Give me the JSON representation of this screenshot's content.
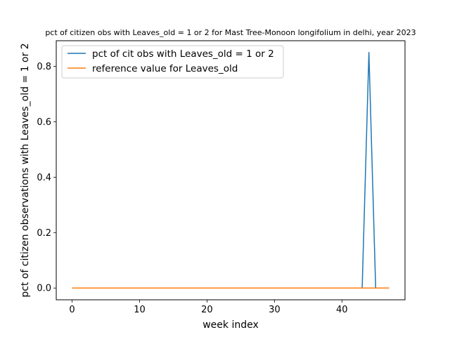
{
  "chart_data": {
    "type": "line",
    "title": "pct of citizen obs with Leaves_old = 1 or 2 for Mast Tree-Monoon longifolium in delhi, year 2023",
    "xlabel": "week index",
    "ylabel": "pct of citizen observations with Leaves_old = 1 or 2",
    "xlim": [
      -2.35,
      49.35
    ],
    "ylim": [
      -0.0425,
      0.8925
    ],
    "xticks": [
      0,
      10,
      20,
      30,
      40
    ],
    "yticks": [
      0.0,
      0.2,
      0.4,
      0.6,
      0.8
    ],
    "xtick_labels": [
      "0",
      "10",
      "20",
      "30",
      "40"
    ],
    "ytick_labels": [
      "0.0",
      "0.2",
      "0.4",
      "0.6",
      "0.8"
    ],
    "grid": false,
    "legend_position": "top-left",
    "series": [
      {
        "name": "pct of cit obs with Leaves_old = 1 or 2",
        "color": "#1f77b4",
        "x": [
          0,
          1,
          2,
          3,
          4,
          5,
          6,
          7,
          8,
          9,
          10,
          11,
          12,
          13,
          14,
          15,
          16,
          17,
          18,
          19,
          20,
          21,
          22,
          23,
          24,
          25,
          26,
          27,
          28,
          29,
          30,
          31,
          32,
          33,
          34,
          35,
          36,
          37,
          38,
          39,
          40,
          41,
          42,
          43,
          44,
          45,
          46,
          47
        ],
        "y": [
          0,
          0,
          0,
          0,
          0,
          0,
          0,
          0,
          0,
          0,
          0,
          0,
          0,
          0,
          0,
          0,
          0,
          0,
          0,
          0,
          0,
          0,
          0,
          0,
          0,
          0,
          0,
          0,
          0,
          0,
          0,
          0,
          0,
          0,
          0,
          0,
          0,
          0,
          0,
          0,
          0,
          0,
          0,
          0,
          0.85,
          0,
          0,
          0
        ]
      },
      {
        "name": "reference value for Leaves_old",
        "color": "#ff7f0e",
        "x": [
          0,
          1,
          2,
          3,
          4,
          5,
          6,
          7,
          8,
          9,
          10,
          11,
          12,
          13,
          14,
          15,
          16,
          17,
          18,
          19,
          20,
          21,
          22,
          23,
          24,
          25,
          26,
          27,
          28,
          29,
          30,
          31,
          32,
          33,
          34,
          35,
          36,
          37,
          38,
          39,
          40,
          41,
          42,
          43,
          44,
          45,
          46,
          47
        ],
        "y": [
          0,
          0,
          0,
          0,
          0,
          0,
          0,
          0,
          0,
          0,
          0,
          0,
          0,
          0,
          0,
          0,
          0,
          0,
          0,
          0,
          0,
          0,
          0,
          0,
          0,
          0,
          0,
          0,
          0,
          0,
          0,
          0,
          0,
          0,
          0,
          0,
          0,
          0,
          0,
          0,
          0,
          0,
          0,
          0,
          0,
          0,
          0,
          0
        ]
      }
    ]
  }
}
